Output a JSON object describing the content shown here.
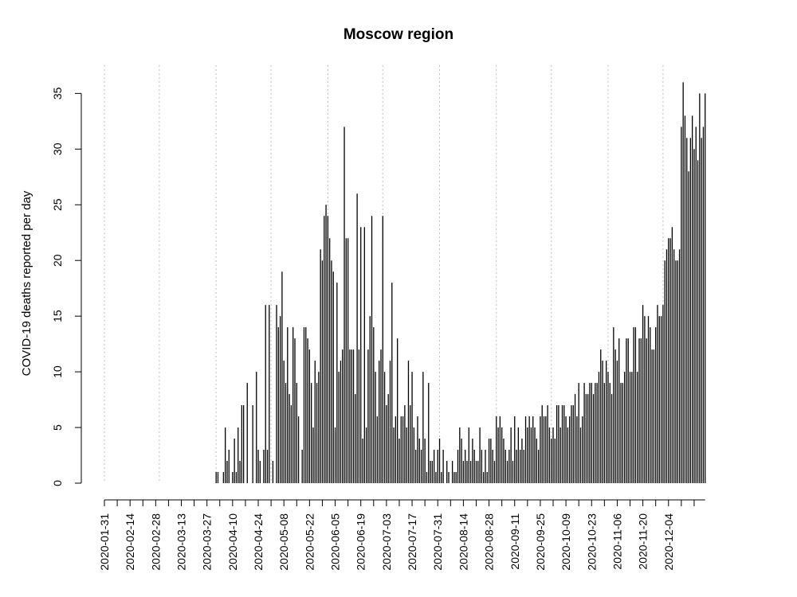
{
  "chart_data": {
    "type": "bar",
    "title": "Moscow region",
    "xlabel": "",
    "ylabel": "COVID-19 deaths reported per day",
    "start_date": "2020-01-31",
    "ylim": [
      0,
      36
    ],
    "yticks": [
      0,
      5,
      10,
      15,
      20,
      25,
      30,
      35
    ],
    "xtick_labels": [
      "2020-01-31",
      "2020-02-14",
      "2020-02-28",
      "2020-03-13",
      "2020-03-27",
      "2020-04-10",
      "2020-04-24",
      "2020-05-08",
      "2020-05-22",
      "2020-06-05",
      "2020-06-19",
      "2020-07-03",
      "2020-07-17",
      "2020-07-31",
      "2020-08-14",
      "2020-08-28",
      "2020-09-11",
      "2020-09-25",
      "2020-10-09",
      "2020-10-23",
      "2020-11-06",
      "2020-11-20",
      "2020-12-04"
    ],
    "month_starts": [
      "2020-01-31",
      "2020-03-01",
      "2020-04-01",
      "2020-05-01",
      "2020-06-01",
      "2020-07-01",
      "2020-08-01",
      "2020-09-01",
      "2020-10-01",
      "2020-11-01",
      "2020-12-01"
    ],
    "grid": "vertical dotted lines at month starts",
    "colors": {
      "bars": "#000000",
      "grid": "#bebebe"
    },
    "values": [
      0,
      0,
      0,
      0,
      0,
      0,
      0,
      0,
      0,
      0,
      0,
      0,
      0,
      0,
      0,
      0,
      0,
      0,
      0,
      0,
      0,
      0,
      0,
      0,
      0,
      0,
      0,
      0,
      0,
      0,
      0,
      0,
      0,
      0,
      0,
      0,
      0,
      0,
      0,
      0,
      0,
      0,
      0,
      0,
      0,
      0,
      0,
      0,
      0,
      0,
      0,
      0,
      0,
      0,
      0,
      0,
      0,
      0,
      0,
      0,
      0,
      1,
      1,
      0,
      0,
      1,
      5,
      2,
      3,
      0,
      1,
      4,
      1,
      5,
      2,
      7,
      7,
      0,
      9,
      0,
      0,
      7,
      0,
      10,
      3,
      2,
      0,
      3,
      16,
      3,
      16,
      0,
      2,
      0,
      16,
      14,
      15,
      19,
      11,
      9,
      14,
      8,
      7,
      14,
      13,
      9,
      6,
      0,
      3,
      14,
      14,
      13,
      12,
      9,
      5,
      11,
      9,
      10,
      21,
      20,
      24,
      25,
      24,
      22,
      20,
      19,
      5,
      18,
      10,
      11,
      12,
      32,
      22,
      22,
      12,
      12,
      12,
      8,
      26,
      12,
      23,
      4,
      23,
      5,
      12,
      15,
      24,
      14,
      10,
      6,
      11,
      12,
      24,
      10,
      7,
      8,
      11,
      18,
      5,
      6,
      13,
      4,
      6,
      6,
      7,
      5,
      11,
      7,
      10,
      5,
      3,
      6,
      4,
      3,
      10,
      4,
      1,
      9,
      2,
      2,
      3,
      1,
      3,
      4,
      1,
      3,
      0,
      2,
      1,
      0,
      2,
      1,
      1,
      3,
      5,
      4,
      2,
      3,
      2,
      5,
      2,
      4,
      3,
      2,
      2,
      5,
      3,
      1,
      3,
      1,
      4,
      4,
      3,
      2,
      6,
      5,
      6,
      5,
      4,
      3,
      2,
      3,
      5,
      2,
      6,
      3,
      5,
      3,
      4,
      3,
      6,
      5,
      6,
      5,
      6,
      5,
      4,
      3,
      6,
      7,
      6,
      6,
      7,
      5,
      4,
      5,
      4,
      7,
      7,
      5,
      7,
      7,
      6,
      5,
      6,
      7,
      7,
      8,
      6,
      9,
      5,
      6,
      9,
      8,
      8,
      9,
      9,
      8,
      9,
      9,
      10,
      12,
      11,
      9,
      11,
      10,
      9,
      8,
      14,
      12,
      11,
      13,
      9,
      9,
      10,
      13,
      13,
      10,
      10,
      14,
      14,
      10,
      13,
      13,
      16,
      15,
      13,
      15,
      14,
      12,
      12,
      14,
      16,
      15,
      15,
      16,
      20,
      21,
      22,
      22,
      23,
      21,
      20,
      20,
      21,
      32,
      36,
      33,
      31,
      28,
      31,
      33,
      30,
      32,
      29,
      35,
      31,
      32,
      35
    ]
  }
}
